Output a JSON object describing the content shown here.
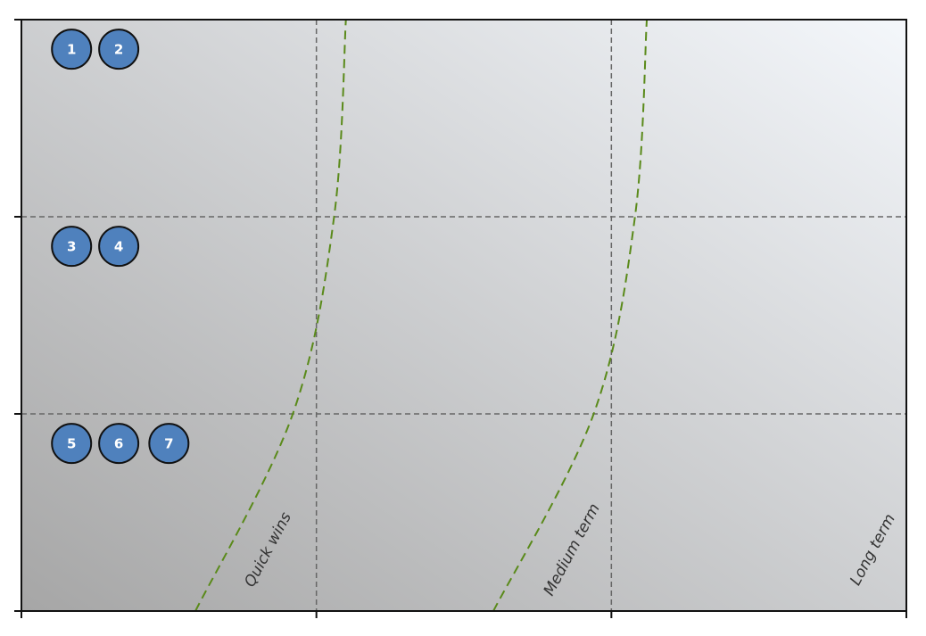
{
  "chart_data": {
    "type": "scatter",
    "title": "",
    "xlabel": "",
    "ylabel": "",
    "grid": true,
    "xlim": [
      0,
      3
    ],
    "ylim": [
      0,
      3
    ],
    "x_ticks": [
      0,
      1,
      2,
      3
    ],
    "y_ticks": [
      0,
      1,
      2,
      3
    ],
    "background_gradient": [
      "#a6a6a6",
      "#f4f7fb"
    ],
    "points": [
      {
        "label": "1",
        "x": 0.17,
        "y": 2.85
      },
      {
        "label": "2",
        "x": 0.33,
        "y": 2.85
      },
      {
        "label": "3",
        "x": 0.17,
        "y": 1.85
      },
      {
        "label": "4",
        "x": 0.33,
        "y": 1.85
      },
      {
        "label": "5",
        "x": 0.17,
        "y": 0.85
      },
      {
        "label": "6",
        "x": 0.33,
        "y": 0.85
      },
      {
        "label": "7",
        "x": 0.5,
        "y": 0.85
      }
    ],
    "point_color": "#4f81bd",
    "point_edge_color": "#111111",
    "zone_curves": [
      {
        "color": "#5a8a1a",
        "points": [
          [
            0.59,
            0
          ],
          [
            0.92,
            1
          ],
          [
            1.06,
            2
          ],
          [
            1.1,
            3
          ]
        ]
      },
      {
        "color": "#5a8a1a",
        "points": [
          [
            1.6,
            0
          ],
          [
            1.94,
            1
          ],
          [
            2.08,
            2
          ],
          [
            2.12,
            3
          ]
        ]
      }
    ],
    "zone_labels": [
      {
        "text": "Quick wins",
        "x": 0.85,
        "y": 0.3
      },
      {
        "text": "Medium term",
        "x": 1.88,
        "y": 0.3
      },
      {
        "text": "Long term",
        "x": 2.9,
        "y": 0.3
      }
    ]
  }
}
